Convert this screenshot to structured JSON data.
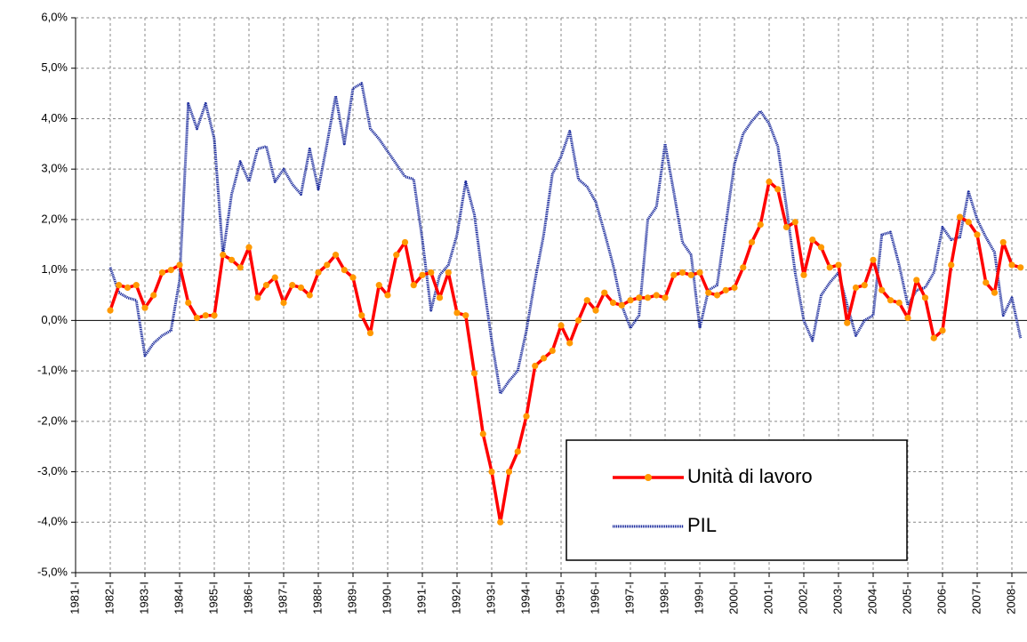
{
  "chart_data": {
    "type": "line",
    "categories": [
      "1981-I",
      null,
      null,
      null,
      "1982-I",
      null,
      null,
      null,
      "1983-I",
      null,
      null,
      null,
      "1984-I",
      null,
      null,
      null,
      "1985-I",
      null,
      null,
      null,
      "1986-I",
      null,
      null,
      null,
      "1987-I",
      null,
      null,
      null,
      "1988-I",
      null,
      null,
      null,
      "1989-I",
      null,
      null,
      null,
      "1990-I",
      null,
      null,
      null,
      "1991-I",
      null,
      null,
      null,
      "1992-I",
      null,
      null,
      null,
      "1993-I",
      null,
      null,
      null,
      "1994-I",
      null,
      null,
      null,
      "1995-I",
      null,
      null,
      null,
      "1996-I",
      null,
      null,
      null,
      "1997-I",
      null,
      null,
      null,
      "1998-I",
      null,
      null,
      null,
      "1999-I",
      null,
      null,
      null,
      "2000-I",
      null,
      null,
      null,
      "2001-I",
      null,
      null,
      null,
      "2002-I",
      null,
      null,
      null,
      "2003-I",
      null,
      null,
      null,
      "2004-I",
      null,
      null,
      null,
      "2005-I",
      null,
      null,
      null,
      "2006-I",
      null,
      null,
      null,
      "2007-I",
      null,
      null,
      null,
      "2008-I",
      null
    ],
    "series": [
      {
        "name": "Unità di lavoro",
        "color": "#ff0000",
        "marker_color": "#ff9900",
        "values": [
          null,
          null,
          null,
          null,
          0.2,
          0.7,
          0.65,
          0.7,
          0.25,
          0.5,
          0.95,
          1.0,
          1.1,
          0.35,
          0.05,
          0.1,
          0.1,
          1.3,
          1.2,
          1.05,
          1.45,
          0.45,
          0.7,
          0.85,
          0.35,
          0.7,
          0.65,
          0.5,
          0.95,
          1.1,
          1.3,
          1.0,
          0.85,
          0.1,
          -0.25,
          0.7,
          0.5,
          1.3,
          1.55,
          0.7,
          0.9,
          0.95,
          0.45,
          0.95,
          0.15,
          0.1,
          -1.05,
          -2.25,
          -3.0,
          -4.0,
          -3.0,
          -2.6,
          -1.9,
          -0.9,
          -0.75,
          -0.6,
          -0.1,
          -0.45,
          0.0,
          0.4,
          0.2,
          0.55,
          0.35,
          0.3,
          0.4,
          0.45,
          0.45,
          0.5,
          0.45,
          0.9,
          0.95,
          0.9,
          0.95,
          0.55,
          0.5,
          0.6,
          0.65,
          1.05,
          1.55,
          1.9,
          2.75,
          2.6,
          1.85,
          1.95,
          0.9,
          1.6,
          1.45,
          1.05,
          1.1,
          -0.05,
          0.65,
          0.7,
          1.2,
          0.6,
          0.4,
          0.35,
          0.05,
          0.8,
          0.45,
          -0.35,
          -0.2,
          1.1,
          2.05,
          1.95,
          1.7,
          0.75,
          0.55,
          1.55,
          1.1,
          1.05
        ]
      },
      {
        "name": "PIL",
        "color": "#1a2a9c",
        "values": [
          null,
          null,
          null,
          null,
          1.05,
          0.55,
          0.45,
          0.4,
          -0.7,
          -0.45,
          -0.3,
          -0.2,
          0.8,
          4.3,
          3.8,
          4.3,
          3.6,
          1.3,
          2.5,
          3.15,
          2.75,
          3.4,
          3.45,
          2.75,
          3.0,
          2.7,
          2.5,
          3.4,
          2.6,
          3.5,
          4.45,
          3.5,
          4.6,
          4.7,
          3.8,
          3.6,
          3.35,
          3.1,
          2.85,
          2.8,
          1.6,
          0.2,
          0.9,
          1.1,
          1.7,
          2.75,
          2.1,
          0.8,
          -0.4,
          -1.45,
          -1.2,
          -1.0,
          -0.2,
          0.8,
          1.7,
          2.9,
          3.25,
          3.75,
          2.8,
          2.65,
          2.35,
          1.75,
          1.1,
          0.3,
          -0.15,
          0.1,
          2.0,
          2.25,
          3.5,
          2.55,
          1.55,
          1.3,
          -0.15,
          0.6,
          0.7,
          1.9,
          3.1,
          3.7,
          3.95,
          4.15,
          3.9,
          3.45,
          2.25,
          0.95,
          0.0,
          -0.4,
          0.5,
          0.75,
          0.95,
          0.3,
          -0.3,
          0.0,
          0.1,
          1.7,
          1.75,
          1.1,
          0.3,
          0.6,
          0.65,
          0.95,
          1.85,
          1.6,
          1.65,
          2.55,
          2.0,
          1.65,
          1.35,
          0.1,
          0.45,
          -0.35
        ]
      }
    ],
    "ylim": [
      -5,
      6
    ],
    "yticks": [
      {
        "value": -5,
        "label": "-5,0%"
      },
      {
        "value": -4,
        "label": "-4,0%"
      },
      {
        "value": -3,
        "label": "-3,0%"
      },
      {
        "value": -2,
        "label": "-2,0%"
      },
      {
        "value": -1,
        "label": "-1,0%"
      },
      {
        "value": 0,
        "label": "0,0%"
      },
      {
        "value": 1,
        "label": "1,0%"
      },
      {
        "value": 2,
        "label": "2,0%"
      },
      {
        "value": 3,
        "label": "3,0%"
      },
      {
        "value": 4,
        "label": "4,0%"
      },
      {
        "value": 5,
        "label": "5,0%"
      },
      {
        "value": 6,
        "label": "6,0%"
      }
    ],
    "grid": true,
    "legend_position": "lower right"
  }
}
